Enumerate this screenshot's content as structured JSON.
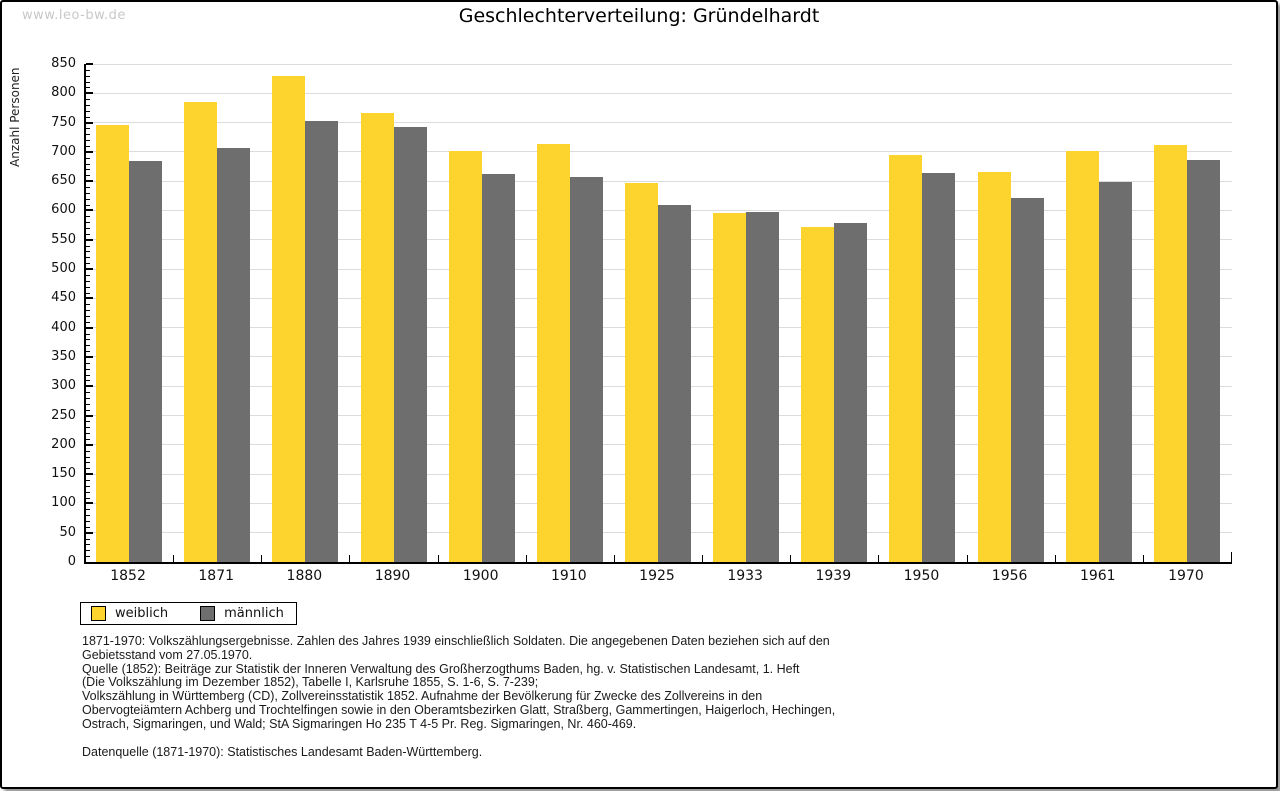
{
  "page": {
    "watermark": "www.leo-bw.de",
    "title": "Geschlechterverteilung: Gründelhardt"
  },
  "chart_data": {
    "type": "bar",
    "title": "Geschlechterverteilung: Gründelhardt",
    "xlabel": "",
    "ylabel": "Anzahl Personen",
    "ylim": [
      0,
      850
    ],
    "ytick_step": 50,
    "ytick_minor_step": 10,
    "grid": "horizontal-major",
    "legend_position": "bottom-left",
    "categories": [
      "1852",
      "1871",
      "1880",
      "1890",
      "1900",
      "1910",
      "1925",
      "1933",
      "1939",
      "1950",
      "1956",
      "1961",
      "1970"
    ],
    "series": [
      {
        "name": "weiblich",
        "color": "#fdd32d",
        "values": [
          746,
          786,
          829,
          767,
          702,
          714,
          647,
          596,
          571,
          694,
          665,
          702,
          712
        ]
      },
      {
        "name": "männlich",
        "color": "#6e6e6e",
        "values": [
          684,
          706,
          752,
          742,
          662,
          657,
          609,
          597,
          578,
          664,
          622,
          648,
          686
        ]
      }
    ]
  },
  "footer": {
    "lines": [
      "1871-1970: Volkszählungsergebnisse. Zahlen des Jahres 1939 einschließlich Soldaten. Die angegebenen Daten beziehen sich auf den",
      "Gebietsstand vom 27.05.1970.",
      "Quelle (1852): Beiträge zur Statistik der Inneren Verwaltung des Großherzogthums Baden, hg. v. Statistischen Landesamt, 1. Heft",
      "(Die Volkszählung im Dezember 1852), Tabelle I, Karlsruhe 1855, S. 1-6, S. 7-239;",
      "Volkszählung in Württemberg (CD), Zollvereinsstatistik 1852. Aufnahme der Bevölkerung für Zwecke des Zollvereins in den",
      "Obervogteiämtern Achberg und Trochtelfingen sowie in den Oberamtsbezirken Glatt, Straßberg, Gammertingen, Haigerloch, Hechingen,",
      "Ostrach, Sigmaringen, und Wald; StA Sigmaringen Ho 235 T 4-5 Pr. Reg. Sigmaringen, Nr. 460-469."
    ],
    "datasource": "Datenquelle (1871-1970): Statistisches Landesamt Baden-Württemberg."
  }
}
